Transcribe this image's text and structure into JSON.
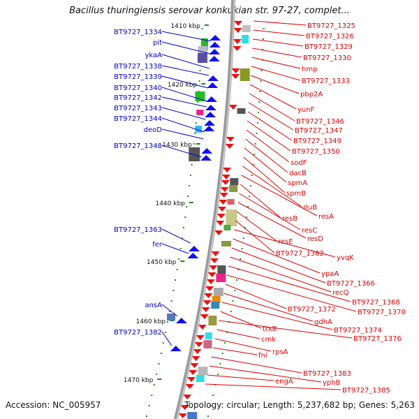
{
  "title": "Bacillus thuringiensis serovar konkukian str. 97-27, complet...",
  "accession": "Accession: NC_005957",
  "topology": "Topology: circular; Length: 5,237,682 bp; Genes: 5,263",
  "colors": {
    "left_label": "#0000cc",
    "right_label": "#dd0000",
    "backbone": "#9a9a9a",
    "tick": "#1a8a1a",
    "forward_gene": "#1010ee",
    "reverse_gene": "#ee1010"
  },
  "scale_ticks": [
    {
      "label": "1410 kbp"
    },
    {
      "label": "1420 kbp"
    },
    {
      "label": "1430 kbp"
    },
    {
      "label": "1440 kbp"
    },
    {
      "label": "1450 kbp"
    },
    {
      "label": "1460 kbp"
    },
    {
      "label": "1470 kbp"
    }
  ],
  "left_genes": [
    {
      "label": "BT9727_1334"
    },
    {
      "label": "pit"
    },
    {
      "label": "ykaA"
    },
    {
      "label": "BT9727_1338"
    },
    {
      "label": "BT9727_1339"
    },
    {
      "label": "BT9727_1340"
    },
    {
      "label": "BT9727_1342"
    },
    {
      "label": "BT9727_1343"
    },
    {
      "label": "BT9727_1344"
    },
    {
      "label": "deoD"
    },
    {
      "label": "BT9727_1348"
    },
    {
      "label": "BT9727_1363"
    },
    {
      "label": "fer"
    },
    {
      "label": "ansA"
    },
    {
      "label": "BT9727_1382"
    }
  ],
  "right_genes": [
    {
      "label": "BT9727_1325"
    },
    {
      "label": "BT9727_1326"
    },
    {
      "label": "BT9727_1329"
    },
    {
      "label": "BT9727_1330"
    },
    {
      "label": "hmp"
    },
    {
      "label": "BT9727_1333"
    },
    {
      "label": "pbp2A"
    },
    {
      "label": "yunF"
    },
    {
      "label": "BT9727_1346"
    },
    {
      "label": "BT9727_1347"
    },
    {
      "label": "BT9727_1349"
    },
    {
      "label": "BT9727_1350"
    },
    {
      "label": "sodF"
    },
    {
      "label": "dacB"
    },
    {
      "label": "spmA"
    },
    {
      "label": "spmB"
    },
    {
      "label": "rluB"
    },
    {
      "label": "resA"
    },
    {
      "label": "resB"
    },
    {
      "label": "resC"
    },
    {
      "label": "resD"
    },
    {
      "label": "resE"
    },
    {
      "label": "BT9727_1362"
    },
    {
      "label": "yvqK"
    },
    {
      "label": "ypaA"
    },
    {
      "label": "BT9727_1366"
    },
    {
      "label": "recQ"
    },
    {
      "label": "BT9727_1368"
    },
    {
      "label": "BT9727_1370"
    },
    {
      "label": "BT9727_1372"
    },
    {
      "label": "gdhA"
    },
    {
      "label": "BT9727_1374"
    },
    {
      "label": "trxB"
    },
    {
      "label": "BT9727_1376"
    },
    {
      "label": "cmk"
    },
    {
      "label": "rpsA"
    },
    {
      "label": "fni"
    },
    {
      "label": "BT9727_1383"
    },
    {
      "label": "yphB"
    },
    {
      "label": "engA"
    },
    {
      "label": "BT9727_1385"
    }
  ]
}
